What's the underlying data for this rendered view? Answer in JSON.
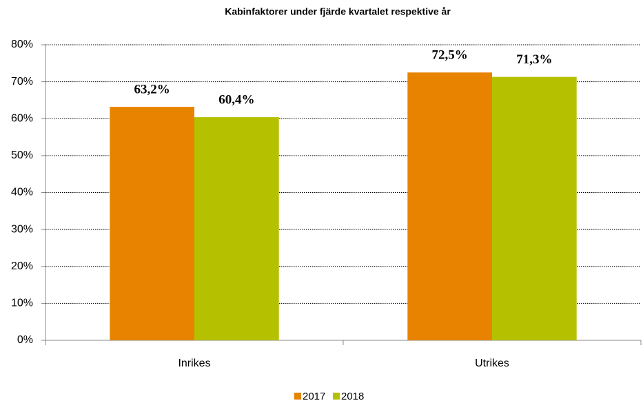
{
  "chart_data": {
    "type": "bar",
    "title": "Kabinfaktorer under fjärde kvartalet respektive år",
    "categories": [
      "Inrikes",
      "Utrikes"
    ],
    "series": [
      {
        "name": "2017",
        "color": "#e88300",
        "values": [
          63.2,
          72.5
        ],
        "value_labels": [
          "63,2%",
          "72,5%"
        ]
      },
      {
        "name": "2018",
        "color": "#b5c000",
        "values": [
          60.4,
          71.3
        ],
        "value_labels": [
          "60,4%",
          "71,3%"
        ]
      }
    ],
    "ylim": [
      0,
      80
    ],
    "yticks": [
      {
        "value": 0,
        "label": "0%"
      },
      {
        "value": 10,
        "label": "10%"
      },
      {
        "value": 20,
        "label": "20%"
      },
      {
        "value": 30,
        "label": "30%"
      },
      {
        "value": 40,
        "label": "40%"
      },
      {
        "value": 50,
        "label": "50%"
      },
      {
        "value": 60,
        "label": "60%"
      },
      {
        "value": 70,
        "label": "70%"
      },
      {
        "value": 80,
        "label": "80%"
      }
    ],
    "grid": true,
    "legend": "bottom"
  }
}
